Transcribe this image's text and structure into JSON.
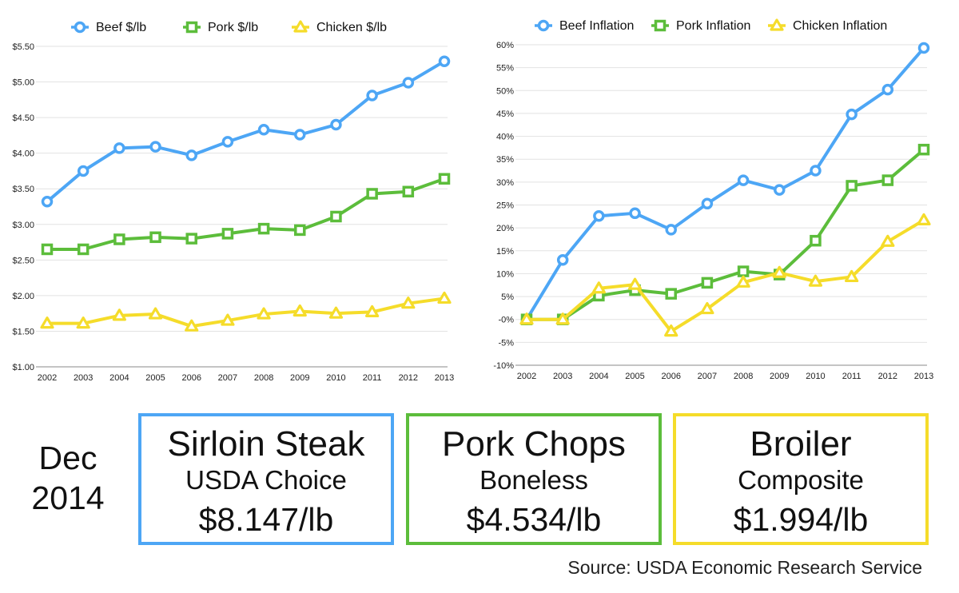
{
  "colors": {
    "beef": "#4da6f5",
    "pork": "#5cbd3b",
    "chicken": "#f5dc2a",
    "grid": "#e2e2e2",
    "axis": "#888888"
  },
  "chart_data": [
    {
      "type": "line",
      "title": "",
      "xlabel": "",
      "ylabel": "",
      "categories": [
        "2002",
        "2003",
        "2004",
        "2005",
        "2006",
        "2007",
        "2008",
        "2009",
        "2010",
        "2011",
        "2012",
        "2013"
      ],
      "ylim": [
        1.0,
        5.5
      ],
      "yticks": [
        1.0,
        1.5,
        2.0,
        2.5,
        3.0,
        3.5,
        4.0,
        4.5,
        5.0,
        5.5
      ],
      "ytick_labels": [
        "$1.00",
        "$1.50",
        "$2.00",
        "$2.50",
        "$3.00",
        "$3.50",
        "$4.00",
        "$4.50",
        "$5.00",
        "$5.50"
      ],
      "grid": true,
      "legend": "top",
      "series": [
        {
          "name": "Beef $/lb",
          "color": "#4da6f5",
          "marker": "circle",
          "values": [
            3.32,
            3.75,
            4.07,
            4.09,
            3.97,
            4.16,
            4.33,
            4.26,
            4.4,
            4.81,
            4.99,
            5.29
          ]
        },
        {
          "name": "Pork $/lb",
          "color": "#5cbd3b",
          "marker": "square",
          "values": [
            2.65,
            2.65,
            2.79,
            2.82,
            2.8,
            2.87,
            2.94,
            2.92,
            3.11,
            3.43,
            3.46,
            3.64
          ]
        },
        {
          "name": "Chicken $/lb",
          "color": "#f5dc2a",
          "marker": "triangle",
          "values": [
            1.61,
            1.61,
            1.72,
            1.74,
            1.57,
            1.65,
            1.74,
            1.78,
            1.75,
            1.77,
            1.89,
            1.96
          ]
        }
      ]
    },
    {
      "type": "line",
      "title": "",
      "xlabel": "",
      "ylabel": "",
      "categories": [
        "2002",
        "2003",
        "2004",
        "2005",
        "2006",
        "2007",
        "2008",
        "2009",
        "2010",
        "2011",
        "2012",
        "2013"
      ],
      "ylim": [
        -10,
        60
      ],
      "yticks": [
        -10,
        -5,
        0,
        5,
        10,
        15,
        20,
        25,
        30,
        35,
        40,
        45,
        50,
        55,
        60
      ],
      "ytick_labels": [
        "-10%",
        "-5%",
        "-0%",
        "5%",
        "10%",
        "15%",
        "20%",
        "25%",
        "30%",
        "35%",
        "40%",
        "45%",
        "50%",
        "55%",
        "60%"
      ],
      "grid": true,
      "legend": "top",
      "series": [
        {
          "name": "Beef Inflation",
          "color": "#4da6f5",
          "marker": "circle",
          "values": [
            0,
            13,
            22.6,
            23.2,
            19.6,
            25.3,
            30.4,
            28.3,
            32.5,
            44.8,
            50.2,
            59.3
          ]
        },
        {
          "name": "Pork Inflation",
          "color": "#5cbd3b",
          "marker": "square",
          "values": [
            0,
            0,
            5.2,
            6.4,
            5.6,
            8.0,
            10.5,
            9.8,
            17.2,
            29.2,
            30.4,
            37.1
          ]
        },
        {
          "name": "Chicken Inflation",
          "color": "#f5dc2a",
          "marker": "triangle",
          "values": [
            0,
            0,
            6.8,
            7.6,
            -2.6,
            2.3,
            8.1,
            10.2,
            8.3,
            9.3,
            17.0,
            21.7
          ]
        }
      ]
    }
  ],
  "date": {
    "line1": "Dec",
    "line2": "2014"
  },
  "cards": {
    "beef": {
      "name": "Sirloin Steak",
      "desc": "USDA Choice",
      "price": "$8.147/lb"
    },
    "pork": {
      "name": "Pork Chops",
      "desc": "Boneless",
      "price": "$4.534/lb"
    },
    "chicken": {
      "name": "Broiler",
      "desc": "Composite",
      "price": "$1.994/lb"
    }
  },
  "source": "Source: USDA Economic Research Service"
}
